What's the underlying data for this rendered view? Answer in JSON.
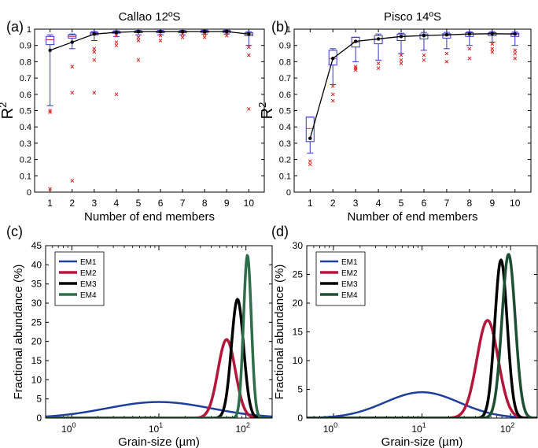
{
  "chart_data": [
    {
      "panel": "(a)",
      "type": "box",
      "title": "Callao 12ºS",
      "xlabel": "Number of end members",
      "ylabel": "R",
      "ylabel_sup": "2",
      "xlim": [
        0.3,
        10.7
      ],
      "ylim": [
        0,
        1
      ],
      "xticks": [
        1,
        2,
        3,
        4,
        5,
        6,
        7,
        8,
        9,
        10
      ],
      "yticks": [
        0,
        0.1,
        0.2,
        0.3,
        0.4,
        0.5,
        0.6,
        0.7,
        0.8,
        0.9,
        1
      ],
      "yticklabels": [
        "0",
        "0.1",
        "0.2",
        "0.3",
        "0.4",
        "0.5",
        "0.6",
        "0.7",
        "0.8",
        "0.9",
        "1"
      ],
      "boxes": [
        {
          "x": 1,
          "whislo": 0.53,
          "q1": 0.905,
          "med": 0.935,
          "q3": 0.955,
          "whishi": 0.965
        },
        {
          "x": 2,
          "whislo": 0.88,
          "q1": 0.945,
          "med": 0.955,
          "q3": 0.965,
          "whishi": 0.97
        },
        {
          "x": 3,
          "whislo": 0.93,
          "q1": 0.965,
          "med": 0.975,
          "q3": 0.98,
          "whishi": 0.985
        },
        {
          "x": 4,
          "whislo": 0.955,
          "q1": 0.975,
          "med": 0.98,
          "q3": 0.985,
          "whishi": 0.99
        },
        {
          "x": 5,
          "whislo": 0.965,
          "q1": 0.978,
          "med": 0.985,
          "q3": 0.988,
          "whishi": 0.992
        },
        {
          "x": 6,
          "whislo": 0.965,
          "q1": 0.978,
          "med": 0.985,
          "q3": 0.988,
          "whishi": 0.992
        },
        {
          "x": 7,
          "whislo": 0.965,
          "q1": 0.978,
          "med": 0.985,
          "q3": 0.988,
          "whishi": 0.992
        },
        {
          "x": 8,
          "whislo": 0.97,
          "q1": 0.98,
          "med": 0.985,
          "q3": 0.99,
          "whishi": 0.994
        },
        {
          "x": 9,
          "whislo": 0.97,
          "q1": 0.98,
          "med": 0.985,
          "q3": 0.99,
          "whishi": 0.994
        },
        {
          "x": 10,
          "whislo": 0.9,
          "q1": 0.96,
          "med": 0.97,
          "q3": 0.978,
          "whishi": 0.985
        }
      ],
      "outliers": [
        [
          1,
          0.49
        ],
        [
          1,
          0.5
        ],
        [
          1,
          0.02
        ],
        [
          2,
          0.77
        ],
        [
          2,
          0.61
        ],
        [
          2,
          0.07
        ],
        [
          3,
          0.88
        ],
        [
          3,
          0.86
        ],
        [
          3,
          0.81
        ],
        [
          3,
          0.61
        ],
        [
          4,
          0.96
        ],
        [
          4,
          0.92
        ],
        [
          4,
          0.9
        ],
        [
          4,
          0.6
        ],
        [
          5,
          0.95
        ],
        [
          5,
          0.93
        ],
        [
          5,
          0.81
        ],
        [
          6,
          0.96
        ],
        [
          6,
          0.93
        ],
        [
          7,
          0.97
        ],
        [
          7,
          0.95
        ],
        [
          8,
          0.97
        ],
        [
          8,
          0.95
        ],
        [
          9,
          0.98
        ],
        [
          9,
          0.96
        ],
        [
          10,
          0.89
        ],
        [
          10,
          0.84
        ],
        [
          10,
          0.51
        ]
      ],
      "mean_line": {
        "x": [
          1,
          2,
          3,
          4,
          5,
          6,
          7,
          8,
          9,
          10
        ],
        "y": [
          0.87,
          0.92,
          0.97,
          0.98,
          0.985,
          0.985,
          0.985,
          0.985,
          0.985,
          0.97
        ]
      },
      "colors": {
        "box": "#3333cc",
        "median": "#cc3333",
        "outlier": "#dd2222",
        "mean": "#000000"
      }
    },
    {
      "panel": "(b)",
      "type": "box",
      "title": "Pisco 14ºS",
      "xlabel": "Number of end members",
      "ylabel": "R",
      "ylabel_sup": "2",
      "xlim": [
        0.3,
        10.7
      ],
      "ylim": [
        0,
        1
      ],
      "xticks": [
        1,
        2,
        3,
        4,
        5,
        6,
        7,
        8,
        9,
        10
      ],
      "yticks": [
        0,
        0.1,
        0.2,
        0.3,
        0.4,
        0.5,
        0.6,
        0.7,
        0.8,
        0.9,
        1
      ],
      "yticklabels": [
        "0",
        "0.1",
        "0.2",
        "0.3",
        "0.4",
        "0.5",
        "0.6",
        "0.7",
        "0.8",
        "0.9",
        "1"
      ],
      "boxes": [
        {
          "x": 1,
          "whislo": 0.24,
          "q1": 0.31,
          "med": 0.39,
          "q3": 0.46,
          "whishi": 0.46
        },
        {
          "x": 2,
          "whislo": 0.66,
          "q1": 0.78,
          "med": 0.82,
          "q3": 0.87,
          "whishi": 0.88
        },
        {
          "x": 3,
          "whislo": 0.8,
          "q1": 0.89,
          "med": 0.92,
          "q3": 0.95,
          "whishi": 0.95
        },
        {
          "x": 4,
          "whislo": 0.81,
          "q1": 0.91,
          "med": 0.94,
          "q3": 0.96,
          "whishi": 0.97
        },
        {
          "x": 5,
          "whislo": 0.85,
          "q1": 0.93,
          "med": 0.955,
          "q3": 0.97,
          "whishi": 0.975
        },
        {
          "x": 6,
          "whislo": 0.87,
          "q1": 0.94,
          "med": 0.96,
          "q3": 0.97,
          "whishi": 0.98
        },
        {
          "x": 7,
          "whislo": 0.88,
          "q1": 0.945,
          "med": 0.962,
          "q3": 0.972,
          "whishi": 0.98
        },
        {
          "x": 8,
          "whislo": 0.9,
          "q1": 0.955,
          "med": 0.97,
          "q3": 0.978,
          "whishi": 0.983
        },
        {
          "x": 9,
          "whislo": 0.92,
          "q1": 0.96,
          "med": 0.972,
          "q3": 0.978,
          "whishi": 0.985
        },
        {
          "x": 10,
          "whislo": 0.9,
          "q1": 0.955,
          "med": 0.968,
          "q3": 0.975,
          "whishi": 0.982
        }
      ],
      "outliers": [
        [
          1,
          0.19
        ],
        [
          1,
          0.17
        ],
        [
          2,
          0.65
        ],
        [
          2,
          0.6
        ],
        [
          2,
          0.56
        ],
        [
          3,
          0.77
        ],
        [
          3,
          0.76
        ],
        [
          3,
          0.75
        ],
        [
          4,
          0.79
        ],
        [
          4,
          0.76
        ],
        [
          5,
          0.84
        ],
        [
          5,
          0.81
        ],
        [
          5,
          0.79
        ],
        [
          6,
          0.84
        ],
        [
          6,
          0.81
        ],
        [
          7,
          0.85
        ],
        [
          7,
          0.8
        ],
        [
          8,
          0.88
        ],
        [
          8,
          0.82
        ],
        [
          9,
          0.91
        ],
        [
          9,
          0.88
        ],
        [
          9,
          0.86
        ],
        [
          10,
          0.87
        ],
        [
          10,
          0.85
        ],
        [
          10,
          0.82
        ]
      ],
      "mean_line": {
        "x": [
          1,
          2,
          3,
          4,
          5,
          6,
          7,
          8,
          9,
          10
        ],
        "y": [
          0.33,
          0.82,
          0.925,
          0.94,
          0.955,
          0.96,
          0.965,
          0.97,
          0.972,
          0.97
        ]
      },
      "colors": {
        "box": "#3333cc",
        "median": "#cc3333",
        "outlier": "#dd2222",
        "mean": "#000000"
      }
    },
    {
      "panel": "(c)",
      "type": "line",
      "xscale": "log",
      "xlabel": "Grain-size (µm)",
      "ylabel": "Fractional abundance (%)",
      "xlim": [
        0.5,
        200
      ],
      "ylim": [
        0,
        45
      ],
      "xticks": [
        1,
        10,
        100
      ],
      "xtick_base": "10",
      "xtick_exponents": [
        "0",
        "1",
        "2"
      ],
      "yticks": [
        0,
        5,
        10,
        15,
        20,
        25,
        30,
        35,
        40,
        45
      ],
      "yticklabels": [
        "0",
        "5",
        "10",
        "15",
        "20",
        "25",
        "30",
        "35",
        "40",
        "45"
      ],
      "legend": "top-left",
      "series": [
        {
          "name": "EM1",
          "color": "#1f3fa0",
          "mu": 10,
          "sigma_log10": 0.6,
          "peak": 4.2,
          "stroke_width": 2.5
        },
        {
          "name": "EM2",
          "color": "#b5173b",
          "mu": 60,
          "sigma_log10": 0.1,
          "peak": 20.5,
          "stroke_width": 3.5
        },
        {
          "name": "EM3",
          "color": "#000000",
          "mu": 80,
          "sigma_log10": 0.07,
          "peak": 31,
          "stroke_width": 3.5
        },
        {
          "name": "EM4",
          "color": "#2e6e4a",
          "mu": 104,
          "sigma_log10": 0.045,
          "peak": 42.5,
          "stroke_width": 3.5
        }
      ]
    },
    {
      "panel": "(d)",
      "type": "line",
      "xscale": "log",
      "xlabel": "Grain-size (µm)",
      "ylabel": "Fractional abundance (%)",
      "xlim": [
        0.5,
        200
      ],
      "ylim": [
        0,
        30
      ],
      "xticks": [
        1,
        10,
        100
      ],
      "xtick_base": "10",
      "xtick_exponents": [
        "0",
        "1",
        "2"
      ],
      "yticks": [
        0,
        5,
        10,
        15,
        20,
        25,
        30
      ],
      "yticklabels": [
        "0",
        "5",
        "10",
        "15",
        "20",
        "25",
        "30"
      ],
      "legend": "top-left",
      "series": [
        {
          "name": "EM1",
          "color": "#1f3fa0",
          "mu": 10,
          "sigma_log10": 0.42,
          "peak": 4.5,
          "stroke_width": 2.5
        },
        {
          "name": "EM2",
          "color": "#b5173b",
          "mu": 55,
          "sigma_log10": 0.12,
          "peak": 17,
          "stroke_width": 3.5
        },
        {
          "name": "EM3",
          "color": "#000000",
          "mu": 78,
          "sigma_log10": 0.07,
          "peak": 27.5,
          "stroke_width": 3.5
        },
        {
          "name": "EM4",
          "color": "#1d4f33",
          "mu": 95,
          "sigma_log10": 0.075,
          "peak": 28.5,
          "stroke_width": 3.5
        }
      ]
    }
  ]
}
